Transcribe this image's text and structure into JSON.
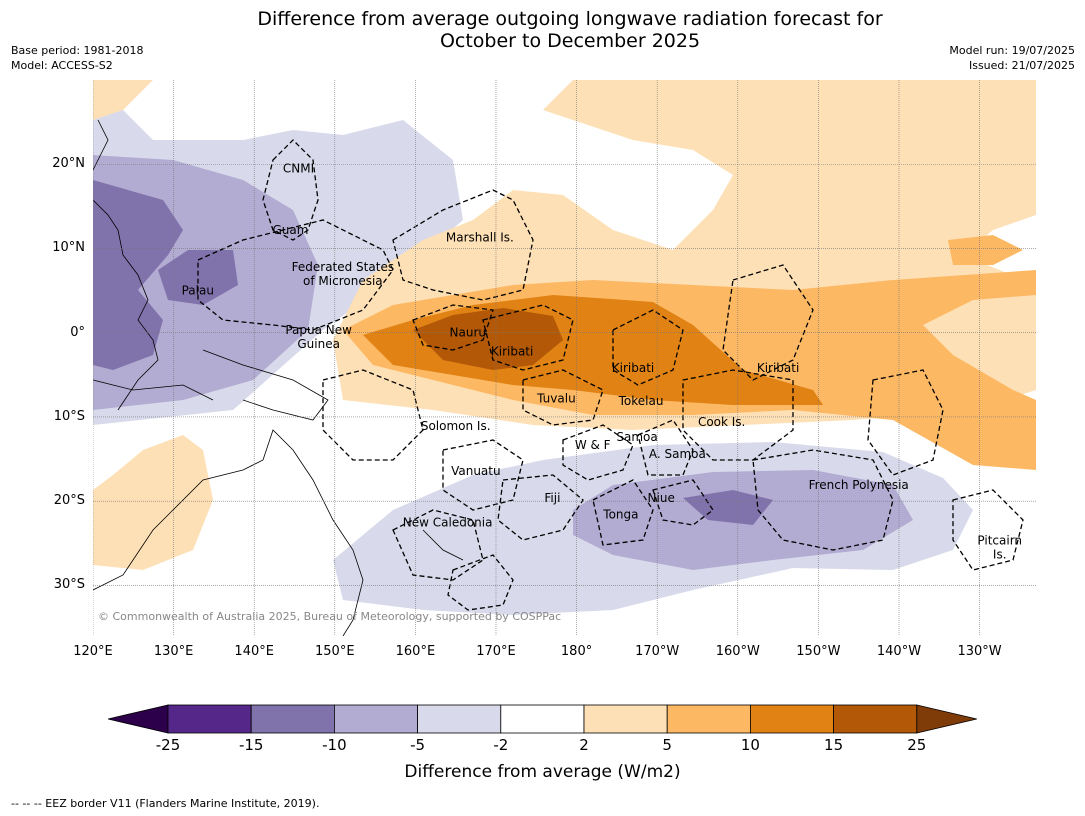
{
  "title": "Difference from average outgoing longwave radiation forecast for\nOctober to December 2025",
  "header_left": {
    "base_period": "Base period: 1981-2018",
    "model": "Model: ACCESS-S2"
  },
  "header_right": {
    "model_run": "Model run: 19/07/2025",
    "issued": "Issued: 21/07/2025"
  },
  "map": {
    "lon_range": [
      120,
      237
    ],
    "lat_range": [
      -36,
      30
    ],
    "lat_ticks": [
      {
        "value": 20,
        "label": "20°N"
      },
      {
        "value": 10,
        "label": "10°N"
      },
      {
        "value": 0,
        "label": "0°"
      },
      {
        "value": -10,
        "label": "10°S"
      },
      {
        "value": -20,
        "label": "20°S"
      },
      {
        "value": -30,
        "label": "30°S"
      }
    ],
    "lon_ticks": [
      {
        "value": 120,
        "label": "120°E"
      },
      {
        "value": 130,
        "label": "130°E"
      },
      {
        "value": 140,
        "label": "140°E"
      },
      {
        "value": 150,
        "label": "150°E"
      },
      {
        "value": 160,
        "label": "160°E"
      },
      {
        "value": 170,
        "label": "170°E"
      },
      {
        "value": 180,
        "label": "180°"
      },
      {
        "value": 190,
        "label": "170°W"
      },
      {
        "value": 200,
        "label": "160°W"
      },
      {
        "value": 210,
        "label": "150°W"
      },
      {
        "value": 220,
        "label": "140°W"
      },
      {
        "value": 230,
        "label": "130°W"
      }
    ],
    "regions": [
      {
        "name": "CNMI",
        "lon": 145.5,
        "lat": 19.5
      },
      {
        "name": "Guam",
        "lon": 144.5,
        "lat": 12.2
      },
      {
        "name": "Marshall Is.",
        "lon": 168,
        "lat": 11.3
      },
      {
        "name": "Federated States\nof Micronesia",
        "lon": 151,
        "lat": 7
      },
      {
        "name": "Palau",
        "lon": 133,
        "lat": 5
      },
      {
        "name": "Papua New\nGuinea",
        "lon": 148,
        "lat": -0.5
      },
      {
        "name": "Nauru",
        "lon": 166.5,
        "lat": 0
      },
      {
        "name": "Kiribati",
        "lon": 172,
        "lat": -2.2
      },
      {
        "name": "Kiribati",
        "lon": 187,
        "lat": -4.2
      },
      {
        "name": "Kiribati",
        "lon": 205,
        "lat": -4.2
      },
      {
        "name": "Tuvalu",
        "lon": 177.5,
        "lat": -7.8
      },
      {
        "name": "Tokelau",
        "lon": 188,
        "lat": -8.1
      },
      {
        "name": "Cook Is.",
        "lon": 198,
        "lat": -10.6
      },
      {
        "name": "Solomon Is.",
        "lon": 165,
        "lat": -11.1
      },
      {
        "name": "Samoa",
        "lon": 187.5,
        "lat": -12.4
      },
      {
        "name": "W & F",
        "lon": 182,
        "lat": -13.3
      },
      {
        "name": "A. Samoa",
        "lon": 192.5,
        "lat": -14.4
      },
      {
        "name": "Vanuatu",
        "lon": 167.5,
        "lat": -16.4
      },
      {
        "name": "French Polynesia",
        "lon": 215,
        "lat": -18.1
      },
      {
        "name": "Fiji",
        "lon": 177,
        "lat": -19.6
      },
      {
        "name": "Niue",
        "lon": 190.5,
        "lat": -19.6
      },
      {
        "name": "Tonga",
        "lon": 185.5,
        "lat": -21.6
      },
      {
        "name": "New Caledonia",
        "lon": 164,
        "lat": -22.5
      },
      {
        "name": "Pitcairn\nIs.",
        "lon": 232.5,
        "lat": -25.5
      }
    ],
    "copyright": "© Commonwealth of Australia 2025, Bureau of Meteorology, supported by COSPPac"
  },
  "colorbar": {
    "title": "Difference from average (W/m2)",
    "ticks": [
      "-25",
      "-15",
      "-10",
      "-5",
      "-2",
      "2",
      "5",
      "10",
      "15",
      "25"
    ],
    "low_extend_color": "#2d004b",
    "high_extend_color": "#7f3b08",
    "colors": [
      "#542788",
      "#8073ac",
      "#b2abd2",
      "#d8daeb",
      "#ffffff",
      "#fee0b6",
      "#fdb863",
      "#e08214",
      "#b35806"
    ]
  },
  "footnote": "--  --  -- EEZ border V11 (Flanders Marine Institute, 2019)."
}
